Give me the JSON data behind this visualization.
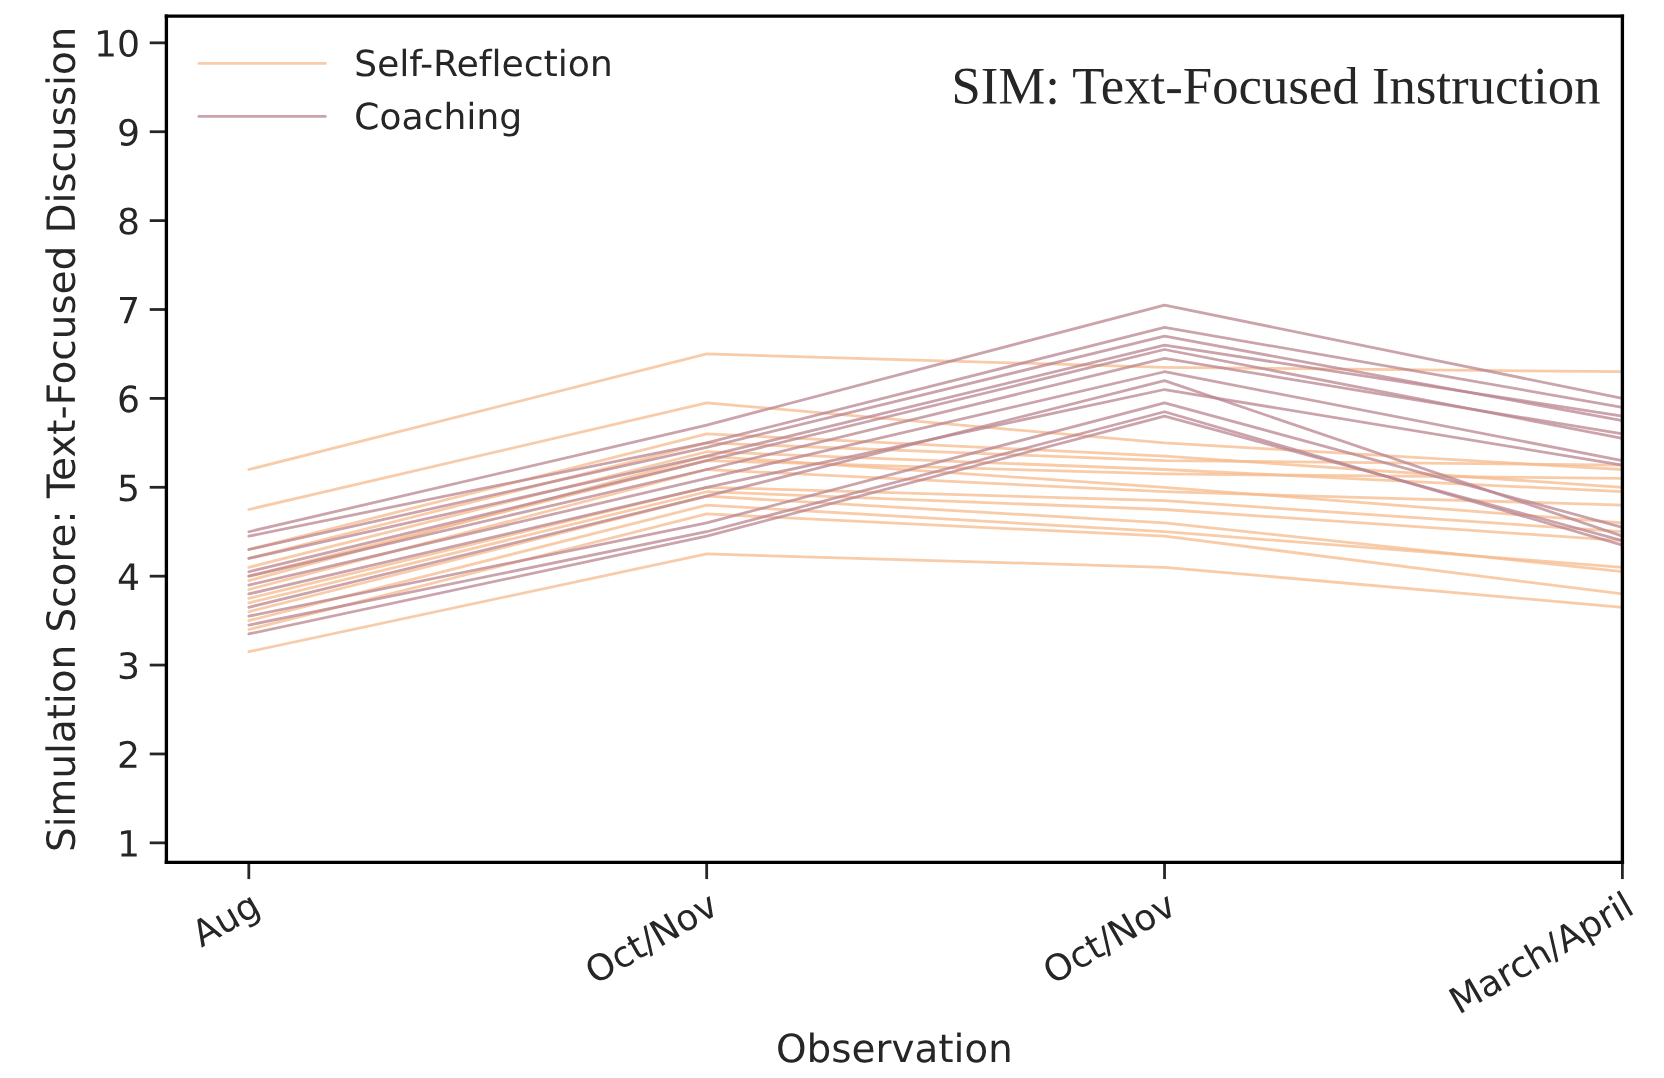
{
  "chart_data": {
    "type": "line",
    "title": "SIM: Text-Focused Instruction",
    "xlabel": "Observation",
    "ylabel": "Simulation Score: Text-Focused Discussion",
    "categories": [
      "Aug",
      "Oct/Nov",
      "Oct/Nov",
      "March/April"
    ],
    "ylim": [
      0.78,
      10.3
    ],
    "yticks": [
      1,
      2,
      3,
      4,
      5,
      6,
      7,
      8,
      9,
      10
    ],
    "grid": false,
    "legend": "top left",
    "marker": "none",
    "line_style": "solid",
    "series": [
      {
        "name": "Self-Reflection",
        "color": "#f6b98c",
        "values": [
          5.2,
          6.5,
          6.35,
          6.3
        ]
      },
      {
        "color": "#f6b98c",
        "values": [
          4.75,
          5.95,
          5.5,
          5.2
        ]
      },
      {
        "color": "#f6b98c",
        "values": [
          4.3,
          5.6,
          5.35,
          5.0
        ]
      },
      {
        "color": "#f6b98c",
        "values": [
          4.2,
          5.5,
          5.3,
          5.25
        ]
      },
      {
        "color": "#f6b98c",
        "values": [
          4.1,
          5.4,
          5.2,
          4.95
        ]
      },
      {
        "color": "#f6b98c",
        "values": [
          4.0,
          5.3,
          5.15,
          5.1
        ]
      },
      {
        "color": "#f6b98c",
        "values": [
          3.95,
          5.35,
          5.0,
          4.6
        ]
      },
      {
        "color": "#f6b98c",
        "values": [
          3.85,
          5.2,
          4.95,
          4.8
        ]
      },
      {
        "color": "#f6b98c",
        "values": [
          3.75,
          5.0,
          4.85,
          4.5
        ]
      },
      {
        "color": "#f6b98c",
        "values": [
          3.7,
          4.95,
          4.75,
          4.4
        ]
      },
      {
        "color": "#f6b98c",
        "values": [
          3.6,
          4.9,
          4.6,
          4.05
        ]
      },
      {
        "color": "#f6b98c",
        "values": [
          3.5,
          4.8,
          4.5,
          4.1
        ]
      },
      {
        "color": "#f6b98c",
        "values": [
          3.4,
          4.7,
          4.45,
          3.8
        ]
      },
      {
        "color": "#f6b98c",
        "values": [
          3.15,
          4.25,
          4.1,
          3.65
        ]
      },
      {
        "name": "Coaching",
        "color": "#b9848f",
        "values": [
          4.5,
          5.7,
          7.05,
          6.0
        ]
      },
      {
        "color": "#b9848f",
        "values": [
          4.45,
          5.5,
          6.8,
          5.9
        ]
      },
      {
        "color": "#b9848f",
        "values": [
          4.3,
          5.45,
          6.7,
          5.75
        ]
      },
      {
        "color": "#b9848f",
        "values": [
          4.2,
          5.35,
          6.6,
          5.8
        ]
      },
      {
        "color": "#b9848f",
        "values": [
          4.05,
          5.3,
          6.55,
          5.55
        ]
      },
      {
        "color": "#b9848f",
        "values": [
          4.0,
          5.2,
          6.45,
          5.6
        ]
      },
      {
        "color": "#b9848f",
        "values": [
          3.9,
          5.1,
          6.3,
          5.3
        ]
      },
      {
        "color": "#b9848f",
        "values": [
          3.8,
          5.0,
          6.1,
          5.25
        ]
      },
      {
        "color": "#b9848f",
        "values": [
          3.65,
          4.9,
          6.2,
          4.45
        ]
      },
      {
        "color": "#b9848f",
        "values": [
          3.55,
          4.6,
          5.95,
          4.55
        ]
      },
      {
        "color": "#b9848f",
        "values": [
          3.45,
          4.5,
          5.85,
          4.35
        ]
      },
      {
        "color": "#b9848f",
        "values": [
          3.35,
          4.45,
          5.8,
          4.4
        ]
      }
    ]
  }
}
